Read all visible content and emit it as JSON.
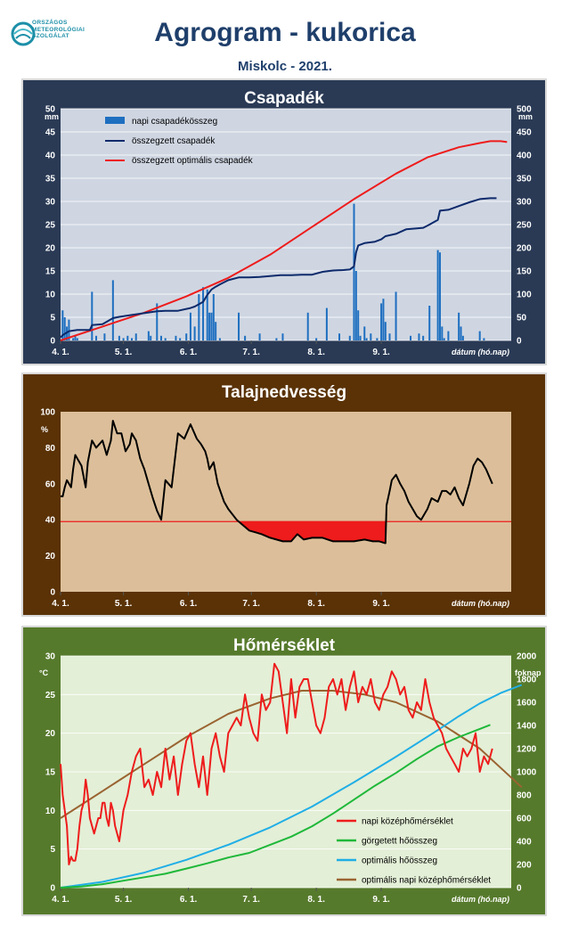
{
  "header": {
    "logo_lines": [
      "ORSZÁGOS",
      "METEOROLÓGIAI",
      "SZOLGÁLAT"
    ],
    "title": "Agrogram - kukorica",
    "subtitle": "Miskolc - 2021."
  },
  "colors": {
    "panel1_bg": "#2a3a55",
    "panel1_plot": "#cfd6e2",
    "panel2_bg": "#5a3206",
    "panel2_plot": "#dcbf9a",
    "panel3_bg": "#567a2c",
    "panel3_plot": "#e3efd6",
    "bar_blue": "#1e6fc0",
    "navy": "#0d2a6b",
    "red": "#ee1c1c",
    "green": "#1fb83a",
    "cyan": "#20aee6",
    "brown": "#9a6432"
  },
  "x_ticks": [
    "4. 1.",
    "5. 1.",
    "6. 1.",
    "7. 1.",
    "8. 1.",
    "9. 1."
  ],
  "x_axis_label": "dátum (hó.nap)",
  "chart_data": [
    {
      "type": "bar",
      "title": "Csapadék",
      "ylabel": "mm",
      "ylabel_right": "mm",
      "ylim": [
        0,
        50
      ],
      "ylim_right": [
        0,
        500
      ],
      "yticks": [
        "0",
        "5",
        "10",
        "15",
        "20",
        "25",
        "30",
        "35",
        "40",
        "45",
        "50"
      ],
      "yticks_right": [
        "0",
        "50",
        "100",
        "150",
        "200",
        "250",
        "300",
        "350",
        "400",
        "450",
        "500"
      ],
      "legend": [
        "napi csapadékösszeg",
        "összegzett csapadék",
        "összegzett optimális  csapadék"
      ],
      "series": [
        {
          "name": "napi csapadékösszeg",
          "axis": "left",
          "x": [
            1,
            2,
            3,
            4,
            6,
            7,
            8,
            15,
            17,
            21,
            25,
            28,
            30,
            32,
            34,
            36,
            42,
            43,
            46,
            48,
            50,
            55,
            57,
            60,
            62,
            64,
            66,
            68,
            70,
            71,
            72,
            73,
            74,
            76,
            85,
            88,
            95,
            103,
            106,
            118,
            122,
            127,
            133,
            138,
            140,
            141,
            142,
            143,
            145,
            146,
            148,
            151,
            153,
            154,
            155,
            157,
            160,
            167,
            171,
            173,
            176,
            180,
            181,
            182,
            183,
            185,
            190,
            191,
            192,
            200,
            202
          ],
          "values": [
            6.5,
            5,
            3,
            4.5,
            0.5,
            1,
            0.5,
            10.5,
            1,
            1.5,
            13,
            1,
            0.5,
            1,
            0.5,
            1.5,
            2,
            1,
            8,
            1,
            0.5,
            1,
            0.5,
            1.5,
            6,
            3,
            10,
            11.5,
            11,
            6,
            6,
            10,
            4,
            0.5,
            6,
            1,
            1.5,
            0.5,
            1.5,
            6,
            0.5,
            7,
            1.5,
            1,
            29.5,
            15,
            6.5,
            1,
            3,
            0.5,
            1.5,
            0.5,
            8,
            9,
            4,
            1.5,
            10.5,
            1,
            1.5,
            1,
            7.5,
            19.5,
            19,
            3,
            0.5,
            2,
            6,
            3,
            1,
            2,
            0.5
          ]
        },
        {
          "name": "összegzett csapadék",
          "axis": "right",
          "x": [
            0,
            1,
            4,
            8,
            14,
            15,
            20,
            25,
            28,
            34,
            46,
            50,
            56,
            62,
            64,
            68,
            70,
            72,
            74,
            76,
            80,
            85,
            90,
            95,
            100,
            105,
            110,
            115,
            120,
            125,
            130,
            135,
            138,
            140,
            141,
            142,
            145,
            150,
            153,
            155,
            160,
            165,
            170,
            173,
            176,
            180,
            181,
            185,
            190,
            195,
            200,
            205,
            208
          ],
          "values": [
            6.5,
            11.5,
            20,
            22.5,
            22.5,
            33,
            35,
            48,
            51,
            55,
            63,
            64,
            64,
            70,
            73,
            83,
            98,
            110,
            116,
            121,
            130,
            136,
            136,
            137,
            139,
            141,
            141,
            142,
            142,
            148,
            151,
            152,
            153,
            160,
            190,
            205,
            210,
            213,
            218,
            225,
            230,
            240,
            242,
            243,
            250,
            260,
            280,
            282,
            290,
            298,
            305,
            307,
            307
          ]
        },
        {
          "name": "összegzett optimális  csapadék",
          "axis": "right",
          "x": [
            0,
            20,
            40,
            60,
            80,
            100,
            120,
            140,
            160,
            175,
            190,
            200,
            205,
            210,
            213
          ],
          "values": [
            0,
            30,
            60,
            95,
            135,
            185,
            245,
            305,
            360,
            395,
            417,
            426,
            430,
            430,
            428
          ]
        }
      ]
    },
    {
      "type": "line",
      "title": "Talajnedvesség",
      "ylabel": "%",
      "ylim": [
        0,
        100
      ],
      "yticks": [
        "0",
        "20",
        "40",
        "60",
        "80",
        "100"
      ],
      "threshold": 39,
      "series": [
        {
          "name": "",
          "x": [
            0,
            1,
            2,
            3,
            5,
            6,
            7,
            10,
            12,
            13,
            15,
            17,
            20,
            22,
            24,
            25,
            27,
            29,
            31,
            33,
            34,
            36,
            38,
            40,
            42,
            44,
            46,
            48,
            50,
            53,
            56,
            59,
            62,
            65,
            67,
            69,
            70,
            71,
            73,
            75,
            78,
            80,
            82,
            84,
            86,
            88,
            90,
            93,
            96,
            100,
            103,
            106,
            110,
            113,
            116,
            120,
            125,
            130,
            135,
            140,
            145,
            149,
            152,
            155,
            155.5,
            157,
            158,
            160,
            162,
            164,
            166,
            168,
            170,
            172,
            175,
            177,
            180,
            182,
            184,
            186,
            188,
            190,
            192,
            195,
            197,
            199,
            201,
            203,
            206
          ],
          "values": [
            53,
            53,
            58,
            62,
            58,
            68,
            76,
            70,
            58,
            72,
            84,
            80,
            84,
            76,
            84,
            95,
            88,
            88,
            78,
            82,
            88,
            84,
            74,
            68,
            60,
            52,
            45,
            40,
            62,
            58,
            88,
            85,
            93,
            85,
            82,
            78,
            74,
            68,
            72,
            60,
            50,
            46,
            43,
            40,
            38,
            36,
            34,
            33,
            32,
            30,
            29,
            28,
            28,
            32,
            29,
            30,
            30,
            28,
            28,
            28,
            29,
            28,
            28,
            27,
            48,
            56,
            62,
            65,
            60,
            56,
            50,
            46,
            42,
            40,
            46,
            52,
            50,
            56,
            56,
            54,
            58,
            52,
            48,
            60,
            70,
            74,
            72,
            68,
            60
          ]
        }
      ]
    },
    {
      "type": "line",
      "title": "Hőmérséklet",
      "ylabel": "°C",
      "ylabel_right": "foknap",
      "ylim": [
        0,
        30
      ],
      "ylim_right": [
        0,
        2000
      ],
      "yticks": [
        "0",
        "5",
        "10",
        "15",
        "20",
        "25",
        "30"
      ],
      "yticks_right": [
        "0",
        "200",
        "400",
        "600",
        "800",
        "1000",
        "1200",
        "1400",
        "1600",
        "1800",
        "2000"
      ],
      "legend": [
        "napi középhőmérséklet",
        "görgetett hőösszeg",
        "optimális hőösszeg",
        "optimális napi középhőmérséklet"
      ],
      "series": [
        {
          "name": "napi középhőmérséklet",
          "axis": "left",
          "x": [
            0,
            1,
            2,
            3,
            4,
            5,
            6,
            7,
            8,
            9,
            10,
            11,
            12,
            13,
            14,
            15,
            16,
            17,
            18,
            19,
            20,
            21,
            22,
            23,
            24,
            25,
            26,
            28,
            30,
            32,
            34,
            36,
            38,
            40,
            42,
            44,
            46,
            48,
            50,
            52,
            54,
            56,
            58,
            60,
            62,
            64,
            66,
            68,
            70,
            72,
            74,
            76,
            78,
            80,
            82,
            84,
            86,
            88,
            90,
            92,
            94,
            96,
            98,
            100,
            102,
            104,
            106,
            108,
            110,
            112,
            114,
            116,
            118,
            120,
            122,
            124,
            126,
            128,
            130,
            132,
            134,
            136,
            138,
            140,
            142,
            144,
            146,
            148,
            150,
            152,
            154,
            156,
            158,
            160,
            162,
            164,
            166,
            168,
            170,
            172,
            174,
            176,
            178,
            180,
            182,
            184,
            186,
            188,
            190,
            192,
            194,
            196,
            198,
            200,
            202,
            204,
            206
          ],
          "values": [
            16,
            12,
            10,
            8,
            3,
            4,
            3.5,
            3.5,
            5,
            8,
            10,
            11,
            14,
            12,
            9,
            8,
            7,
            8,
            9,
            9,
            11,
            11,
            9,
            8,
            11,
            10,
            8,
            6,
            10,
            12,
            15,
            17,
            18,
            13,
            14,
            12,
            15,
            13,
            18,
            14,
            17,
            12,
            16,
            19,
            20,
            16,
            13,
            17,
            12,
            18,
            20,
            17,
            15,
            20,
            21,
            22,
            21,
            25,
            22,
            20,
            19,
            25,
            23,
            24,
            29,
            28,
            24,
            20,
            27,
            22,
            26,
            27,
            27,
            24,
            21,
            20,
            22,
            26,
            27,
            25,
            27,
            23,
            26,
            28,
            24,
            26,
            25,
            27,
            24,
            23,
            25,
            26,
            28,
            27,
            25,
            26,
            23,
            22,
            24,
            23,
            27,
            24,
            22,
            21,
            20,
            18,
            17,
            16,
            15,
            18,
            17,
            18,
            20,
            15,
            17,
            16,
            18
          ]
        },
        {
          "name": "görgetett hőösszeg",
          "axis": "right",
          "x": [
            0,
            10,
            20,
            30,
            40,
            50,
            60,
            70,
            80,
            90,
            100,
            110,
            120,
            130,
            140,
            150,
            160,
            170,
            180,
            190,
            200,
            205
          ],
          "values": [
            0,
            10,
            30,
            60,
            90,
            120,
            165,
            210,
            260,
            300,
            370,
            440,
            530,
            640,
            760,
            880,
            990,
            1110,
            1220,
            1300,
            1370,
            1405
          ]
        },
        {
          "name": "optimális hőösszeg",
          "axis": "right",
          "x": [
            0,
            20,
            40,
            60,
            80,
            100,
            120,
            140,
            160,
            180,
            190,
            200,
            210,
            220
          ],
          "values": [
            0,
            50,
            130,
            240,
            370,
            520,
            700,
            910,
            1130,
            1360,
            1480,
            1590,
            1680,
            1750
          ]
        },
        {
          "name": "optimális napi középhőmérséklet",
          "axis": "left",
          "x": [
            0,
            20,
            40,
            60,
            80,
            100,
            115,
            130,
            145,
            160,
            180,
            200,
            220
          ],
          "values": [
            9,
            12.5,
            16,
            19.5,
            22.5,
            24.5,
            25.5,
            25.5,
            25,
            24,
            21.5,
            18,
            13
          ]
        }
      ]
    }
  ]
}
